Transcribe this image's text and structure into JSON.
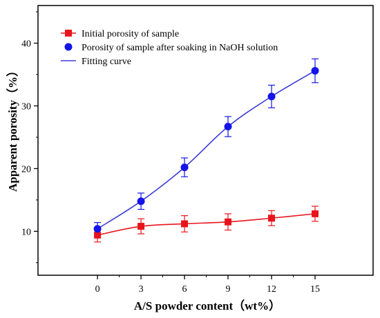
{
  "chart_data": {
    "type": "line",
    "xlabel": "A/S powder content（wt%）",
    "ylabel": "Apparent porosity（%）",
    "x": [
      0,
      3,
      6,
      9,
      12,
      15
    ],
    "xticks": [
      0,
      3,
      6,
      9,
      12,
      15
    ],
    "yticks": [
      10,
      20,
      30,
      40
    ],
    "xlim": [
      -4.1,
      19
    ],
    "ylim": [
      3,
      46
    ],
    "grid": false,
    "legend_position": "top-left",
    "series": [
      {
        "name": "Initial porosity of sample",
        "marker": "square",
        "color": "#e8141b",
        "y": [
          9.4,
          10.8,
          11.2,
          11.5,
          12.1,
          12.8
        ],
        "error": [
          1.1,
          1.2,
          1.3,
          1.3,
          1.2,
          1.2
        ]
      },
      {
        "name": "Porosity of sample after soaking in NaOH solution",
        "marker": "circle",
        "color": "#1414e8",
        "y": [
          10.4,
          14.8,
          20.2,
          26.7,
          31.5,
          35.6
        ],
        "error": [
          1.0,
          1.3,
          1.5,
          1.6,
          1.8,
          1.9
        ]
      }
    ],
    "fit_legend": "Fitting curve",
    "fit_color": "#3a3ad8"
  }
}
